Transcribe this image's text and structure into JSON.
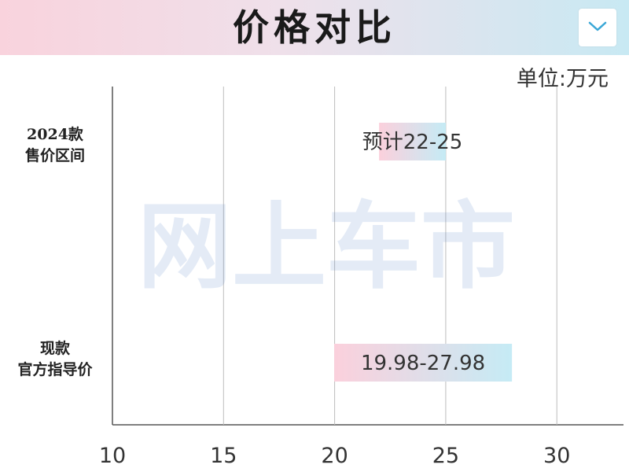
{
  "header": {
    "title": "价格对比",
    "menu_icon": "chevron-down-icon",
    "accent_colors": [
      "#f9d3dd",
      "#c8e9f3"
    ],
    "chevron_color": "#3aa7d6"
  },
  "unit_label": "单位:万元",
  "watermark": "网上车市",
  "chart_data": {
    "type": "bar",
    "orientation": "horizontal-range",
    "title": "价格对比",
    "xlabel": "单位:万元",
    "ylabel": "",
    "xlim": [
      10,
      33
    ],
    "xticks": [
      10,
      15,
      20,
      25,
      30
    ],
    "grid": true,
    "categories": [
      {
        "lines": [
          "2024款",
          "售价区间"
        ]
      },
      {
        "lines": [
          "现款",
          "官方指导价"
        ]
      }
    ],
    "ranges": [
      {
        "low": 22,
        "high": 25,
        "label": "预计22-25"
      },
      {
        "low": 19.98,
        "high": 27.98,
        "label": "19.98-27.98"
      }
    ],
    "bar_colors": [
      "#fbd0dc",
      "#c5ebf5"
    ]
  }
}
